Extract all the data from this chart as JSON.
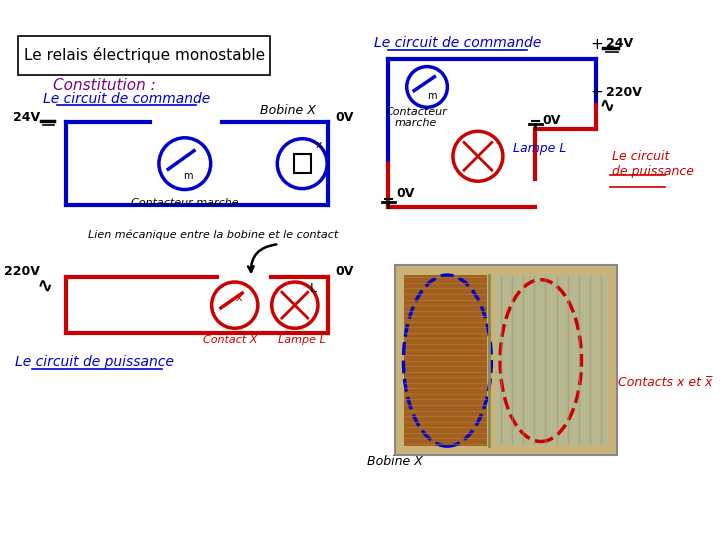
{
  "title": "Le relais électrique monostable",
  "subtitle": "Constitution :",
  "bg_color": "#ffffff",
  "blue_color": "#0000cc",
  "red_color": "#cc0000",
  "black_color": "#000000",
  "purple_color": "#800080",
  "left_circuit_commande": "Le circuit de commande",
  "left_circuit_puissance": "Le circuit de puissance",
  "right_circuit_commande": "Le circuit de commande",
  "right_circuit_puissance": "Le circuit\nde puissance",
  "bobine_label_left": "Bobine X",
  "bobine_label_right": "Bobine X",
  "contacteur_label": "Contacteur marche",
  "contacteur_label_right": "Contacteur\nmarche",
  "lien_label": "Lien mécanique entre la bobine et le contact",
  "contact_label": "Contact X",
  "lampe_label": "Lampe L",
  "contacts_label": "Contacts x et x̅",
  "v24": "24V",
  "v220": "220V",
  "v0": "0V"
}
